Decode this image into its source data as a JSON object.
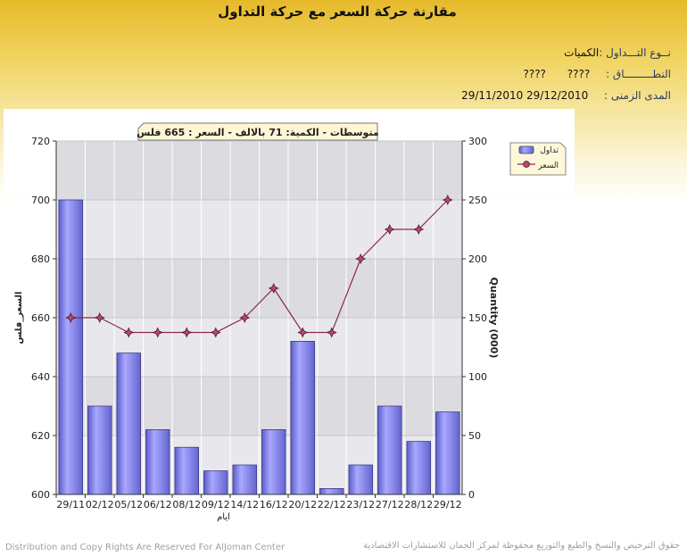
{
  "header": {
    "title": "مقارنة حركة السعر مع حركة التداول"
  },
  "info": {
    "type_label": "نــوع التـــداول :",
    "type_value": "الكميات",
    "scope_label": "النطـــــــــاق :",
    "scope_value_1": "????",
    "scope_value_2": "????",
    "period_label": "المدى الزمنى :",
    "period_value": "29/11/2010 29/12/2010"
  },
  "chart_data": {
    "type": "bar",
    "title": "متوسطات - الكمية: 71 بالالف  -  السعر : 665 فلس",
    "xlabel": "ايام",
    "ylabel_left": "السعر_فلس",
    "ylabel_right": "Quantity (000)",
    "categories": [
      "29/11",
      "02/12",
      "05/12",
      "06/12",
      "08/12",
      "09/12",
      "14/12",
      "16/12",
      "20/12",
      "22/12",
      "23/12",
      "27/12",
      "28/12",
      "29/12"
    ],
    "ylim_left": [
      600,
      720
    ],
    "yticks_left": [
      600,
      620,
      640,
      660,
      680,
      700,
      720
    ],
    "ylim_right": [
      0,
      300
    ],
    "yticks_right": [
      0,
      50,
      100,
      150,
      200,
      250,
      300
    ],
    "series": [
      {
        "name": "تداول",
        "axis": "right",
        "type": "bar",
        "color": "#8080e8",
        "values": [
          250,
          75,
          120,
          55,
          40,
          20,
          25,
          55,
          130,
          5,
          25,
          75,
          45,
          70
        ]
      },
      {
        "name": "السعر",
        "axis": "left",
        "type": "line",
        "color": "#8b2a4a",
        "values": [
          660,
          660,
          655,
          655,
          655,
          655,
          660,
          670,
          655,
          655,
          680,
          690,
          690,
          700
        ]
      }
    ],
    "legend_position": "top-right",
    "grid": true
  },
  "footer": {
    "left": "Distribution and Copy Rights Are Reserved For AlJoman Center",
    "right": "حقوق الترخيص والنسخ والطبع والتوزيع محفوظة لمركز الجمان للاستشارات الاقتصادية"
  }
}
